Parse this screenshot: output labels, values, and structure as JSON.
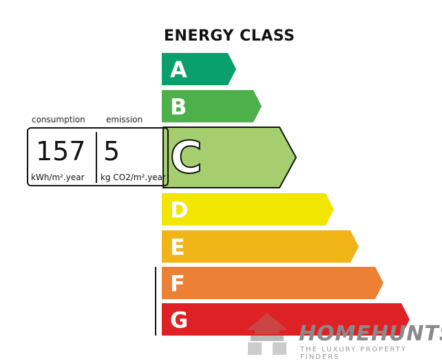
{
  "title": "ENERGY CLASS",
  "classes": [
    {
      "letter": "A",
      "color": "#0aa06e"
    },
    {
      "letter": "B",
      "color": "#4db04a"
    },
    {
      "letter": "C",
      "color": "#a5cf6f"
    },
    {
      "letter": "D",
      "color": "#f2e500"
    },
    {
      "letter": "E",
      "color": "#f0b418"
    },
    {
      "letter": "F",
      "color": "#ec8034"
    },
    {
      "letter": "G",
      "color": "#dd2124"
    }
  ],
  "current_class": "C",
  "consumption": {
    "label": "consumption",
    "value": "157",
    "unit": "kWh/m².year"
  },
  "emission": {
    "label": "emission",
    "value": "5",
    "unit": "kg CO2/m².year"
  },
  "logo": {
    "name": "HOMEHUNTS",
    "tagline": "THE LUXURY PROPERTY FINDERS"
  }
}
